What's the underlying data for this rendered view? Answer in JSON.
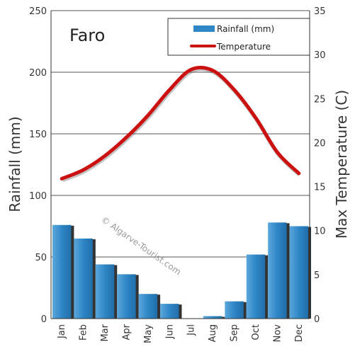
{
  "chart_data": {
    "type": "bar",
    "title": "Faro",
    "categories": [
      "Jan",
      "Feb",
      "Mar",
      "Apr",
      "May",
      "Jun",
      "Jul",
      "Aug",
      "Sep",
      "Oct",
      "Nov",
      "Dec"
    ],
    "series": [
      {
        "name": "Rainfall (mm)",
        "kind": "bar",
        "axis": "left",
        "color": "#2f86c6",
        "values": [
          76,
          65,
          44,
          36,
          20,
          12,
          0,
          2,
          14,
          52,
          78,
          75
        ]
      },
      {
        "name": "Temperature",
        "kind": "line",
        "axis": "right",
        "color": "#cc1111",
        "values": [
          15.9,
          16.9,
          18.5,
          20.6,
          23.1,
          26.0,
          28.3,
          28.2,
          26.0,
          22.8,
          18.9,
          16.5
        ]
      }
    ],
    "ylabel": "Rainfall (mm)",
    "y2label": "Max Temperature (C)",
    "ylim": [
      0,
      250
    ],
    "y2lim": [
      0,
      35
    ],
    "yticks": [
      0,
      50,
      100,
      150,
      200,
      250
    ],
    "y2ticks": [
      0,
      5,
      10,
      15,
      20,
      25,
      30,
      35
    ],
    "grid": true,
    "legend": "top-right",
    "watermark": "© Algarve-Tourist.com"
  }
}
